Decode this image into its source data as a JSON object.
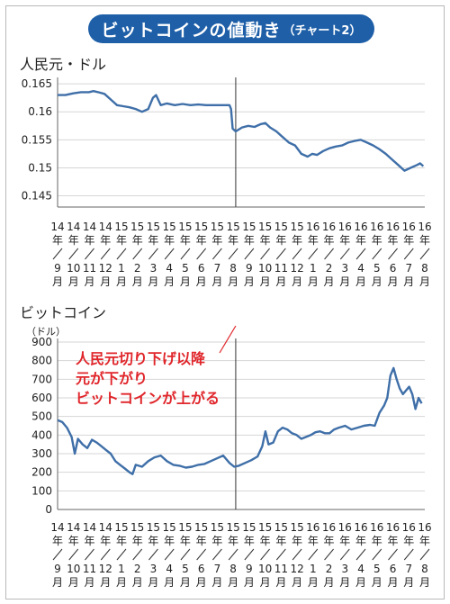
{
  "header": {
    "title_main": "ビットコインの値動き",
    "title_sub": "（チャート2）"
  },
  "chart_data": [
    {
      "type": "line",
      "title": "人民元・ドル",
      "ylim": [
        0.143,
        0.1655
      ],
      "yticks": [
        0.145,
        0.15,
        0.155,
        0.16,
        0.165
      ],
      "ytick_labels": [
        "0.145",
        "0.15",
        "0.155",
        "0.16",
        "0.165"
      ],
      "xlim": [
        0,
        23.5
      ],
      "month_ticks": [
        {
          "year": "14",
          "month": "9"
        },
        {
          "year": "14",
          "month": "10"
        },
        {
          "year": "14",
          "month": "11"
        },
        {
          "year": "14",
          "month": "12"
        },
        {
          "year": "15",
          "month": "1"
        },
        {
          "year": "15",
          "month": "2"
        },
        {
          "year": "15",
          "month": "3"
        },
        {
          "year": "15",
          "month": "4"
        },
        {
          "year": "15",
          "month": "5"
        },
        {
          "year": "15",
          "month": "6"
        },
        {
          "year": "15",
          "month": "7"
        },
        {
          "year": "15",
          "month": "8"
        },
        {
          "year": "15",
          "month": "9"
        },
        {
          "year": "15",
          "month": "10"
        },
        {
          "year": "15",
          "month": "11"
        },
        {
          "year": "15",
          "month": "12"
        },
        {
          "year": "16",
          "month": "1"
        },
        {
          "year": "16",
          "month": "2"
        },
        {
          "year": "16",
          "month": "3"
        },
        {
          "year": "16",
          "month": "4"
        },
        {
          "year": "16",
          "month": "5"
        },
        {
          "year": "16",
          "month": "6"
        },
        {
          "year": "16",
          "month": "7"
        },
        {
          "year": "16",
          "month": "8"
        }
      ],
      "year_suffix": "年",
      "month_suffix": "月",
      "marker_x": 11.4,
      "series": [
        {
          "color": "#3f6fa8",
          "x": [
            0,
            0.5,
            1,
            1.5,
            2,
            2.3,
            2.6,
            3,
            3.4,
            3.8,
            4.2,
            4.6,
            5,
            5.4,
            5.8,
            6.1,
            6.3,
            6.6,
            7,
            7.5,
            8,
            8.5,
            9,
            9.5,
            10,
            10.5,
            11,
            11.1,
            11.2,
            11.4,
            11.8,
            12.2,
            12.6,
            13,
            13.3,
            13.6,
            14,
            14.4,
            14.8,
            15.2,
            15.6,
            16,
            16.3,
            16.6,
            17,
            17.4,
            17.8,
            18.2,
            18.6,
            19,
            19.4,
            19.8,
            20.2,
            20.6,
            21,
            21.4,
            21.8,
            22.2,
            22.6,
            23,
            23.2,
            23.4
          ],
          "y": [
            0.163,
            0.163,
            0.1633,
            0.1635,
            0.1635,
            0.1637,
            0.1635,
            0.1632,
            0.1622,
            0.1612,
            0.161,
            0.1608,
            0.1605,
            0.16,
            0.1605,
            0.1625,
            0.163,
            0.1612,
            0.1615,
            0.1612,
            0.1614,
            0.1612,
            0.1613,
            0.1612,
            0.1612,
            0.1612,
            0.1612,
            0.1605,
            0.157,
            0.1565,
            0.1572,
            0.1575,
            0.1573,
            0.1578,
            0.158,
            0.1572,
            0.1565,
            0.1555,
            0.1545,
            0.154,
            0.1525,
            0.152,
            0.1525,
            0.1523,
            0.153,
            0.1535,
            0.1538,
            0.154,
            0.1545,
            0.1548,
            0.155,
            0.1545,
            0.154,
            0.1533,
            0.1525,
            0.1515,
            0.1505,
            0.1495,
            0.15,
            0.1505,
            0.1508,
            0.1503
          ]
        }
      ]
    },
    {
      "type": "line",
      "title": "ビットコイン",
      "unit": "（ドル）",
      "ylim": [
        0,
        900
      ],
      "yticks": [
        0,
        100,
        200,
        300,
        400,
        500,
        600,
        700,
        800,
        900
      ],
      "ytick_labels": [
        "0",
        "100",
        "200",
        "300",
        "400",
        "500",
        "600",
        "700",
        "800",
        "900"
      ],
      "xlim": [
        0,
        23.5
      ],
      "month_ticks": [
        {
          "year": "14",
          "month": "9"
        },
        {
          "year": "14",
          "month": "10"
        },
        {
          "year": "14",
          "month": "11"
        },
        {
          "year": "14",
          "month": "12"
        },
        {
          "year": "15",
          "month": "1"
        },
        {
          "year": "15",
          "month": "2"
        },
        {
          "year": "15",
          "month": "3"
        },
        {
          "year": "15",
          "month": "4"
        },
        {
          "year": "15",
          "month": "5"
        },
        {
          "year": "15",
          "month": "6"
        },
        {
          "year": "15",
          "month": "7"
        },
        {
          "year": "15",
          "month": "8"
        },
        {
          "year": "15",
          "month": "9"
        },
        {
          "year": "15",
          "month": "10"
        },
        {
          "year": "15",
          "month": "11"
        },
        {
          "year": "15",
          "month": "12"
        },
        {
          "year": "16",
          "month": "1"
        },
        {
          "year": "16",
          "month": "2"
        },
        {
          "year": "16",
          "month": "3"
        },
        {
          "year": "16",
          "month": "4"
        },
        {
          "year": "16",
          "month": "5"
        },
        {
          "year": "16",
          "month": "6"
        },
        {
          "year": "16",
          "month": "7"
        },
        {
          "year": "16",
          "month": "8"
        }
      ],
      "year_suffix": "年",
      "month_suffix": "月",
      "marker_x": 11.4,
      "annotation_lines": [
        "人民元切り下げ以降",
        "元が下がり",
        "ビットコインが上がる"
      ],
      "series": [
        {
          "color": "#3f6fa8",
          "x": [
            0,
            0.3,
            0.6,
            0.9,
            1.1,
            1.3,
            1.6,
            1.9,
            2.2,
            2.5,
            2.8,
            3.1,
            3.4,
            3.7,
            4,
            4.3,
            4.6,
            4.8,
            5,
            5.4,
            5.8,
            6.2,
            6.6,
            7,
            7.4,
            7.8,
            8.2,
            8.6,
            9,
            9.4,
            9.8,
            10.2,
            10.6,
            11,
            11.3,
            11.6,
            12,
            12.4,
            12.8,
            13.1,
            13.3,
            13.5,
            13.8,
            14.1,
            14.4,
            14.7,
            15,
            15.3,
            15.6,
            15.9,
            16.2,
            16.5,
            16.8,
            17.1,
            17.4,
            17.7,
            18,
            18.4,
            18.8,
            19.2,
            19.6,
            20,
            20.3,
            20.6,
            20.9,
            21.1,
            21.3,
            21.5,
            21.7,
            21.9,
            22.1,
            22.3,
            22.5,
            22.7,
            22.9,
            23.1,
            23.3
          ],
          "y": [
            480,
            470,
            440,
            390,
            300,
            380,
            350,
            330,
            375,
            360,
            340,
            320,
            300,
            260,
            240,
            220,
            200,
            190,
            240,
            230,
            260,
            280,
            290,
            260,
            240,
            235,
            225,
            230,
            240,
            245,
            260,
            275,
            290,
            250,
            230,
            235,
            250,
            265,
            285,
            340,
            420,
            350,
            360,
            420,
            440,
            430,
            410,
            400,
            380,
            390,
            400,
            415,
            420,
            410,
            410,
            430,
            440,
            450,
            430,
            440,
            450,
            455,
            450,
            520,
            560,
            600,
            720,
            760,
            700,
            650,
            620,
            640,
            660,
            620,
            540,
            600,
            570
          ]
        }
      ]
    }
  ]
}
